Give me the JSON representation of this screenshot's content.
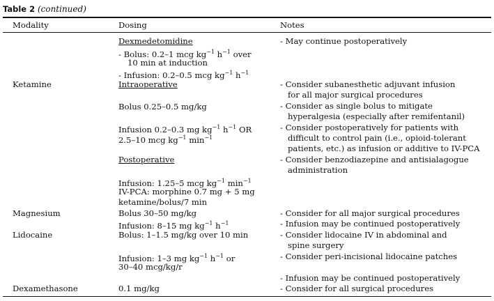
{
  "table": {
    "label": "Table 2",
    "continued": "(continued)",
    "headers": [
      "Modality",
      "Dosing",
      "Notes"
    ]
  },
  "rows": {
    "dex": {
      "heading": "Dexmedetomidine",
      "bolus1": "- Bolus: 0.2–1 mcg kg",
      "bolus2": "over",
      "bolus3": "10 min at induction",
      "infusion": "- Infusion: 0.2–0.5 mcg kg",
      "note1": "- May continue postoperatively"
    },
    "ketamine": {
      "modality": "Ketamine",
      "intraop": "Intraoperative",
      "bolus": "Bolus 0.25–0.5 mg/kg",
      "inf1": "Infusion 0.2–0.3 mg kg",
      "inf1_or": "OR",
      "inf2": "2.5–10 mcg kg",
      "inf2_min": "min",
      "postop": "Postoperative",
      "post_inf": "Infusion: 1.25–5 mcg kg",
      "post_min": "min",
      "ivpca1": "IV-PCA: morphine 0.7 mg + 5 mg",
      "ivpca2": "ketamine/bolus/7 min",
      "note1a": "- Consider subanesthetic adjuvant infusion",
      "note1b": "for all major surgical procedures",
      "note2a": "- Consider as single bolus to mitigate",
      "note2b": "hyperalgesia (especially after remifentanil)",
      "note3a": "- Consider postoperatively for patients with",
      "note3b": "difficult to control pain (i.e., opioid-tolerant",
      "note3c": "patients, etc.) as infusion or additive to IV-PCA",
      "note4a": "- Consider benzodiazepine and antisialagogue",
      "note4b": "administration"
    },
    "magnesium": {
      "modality": "Magnesium",
      "bolus": "Bolus 30–50 mg/kg",
      "inf": "Infusion: 8–15 mg kg",
      "note1": "- Consider for all major surgical procedures",
      "note2": "- Infusion may be continued postoperatively"
    },
    "lidocaine": {
      "modality": "Lidocaine",
      "bolus": "Bolus: 1–1.5 mg/kg over 10 min",
      "inf1": "Infusion: 1–3 mg kg",
      "inf1_or": "or",
      "inf2": "30–40 mcg/kg/r",
      "note1a": "- Consider lidocaine IV in abdominal and",
      "note1b": "spine surgery",
      "note2": "- Consider peri-incisional lidocaine patches",
      "note3": "- Infusion may be continued postoperatively"
    },
    "dexamethasone": {
      "modality": "Dexamethasone",
      "dose": "0.1 mg/kg",
      "note1": "- Consider for all surgical procedures"
    }
  },
  "sup": {
    "minus1": "−1",
    "minus1b": "−1"
  }
}
